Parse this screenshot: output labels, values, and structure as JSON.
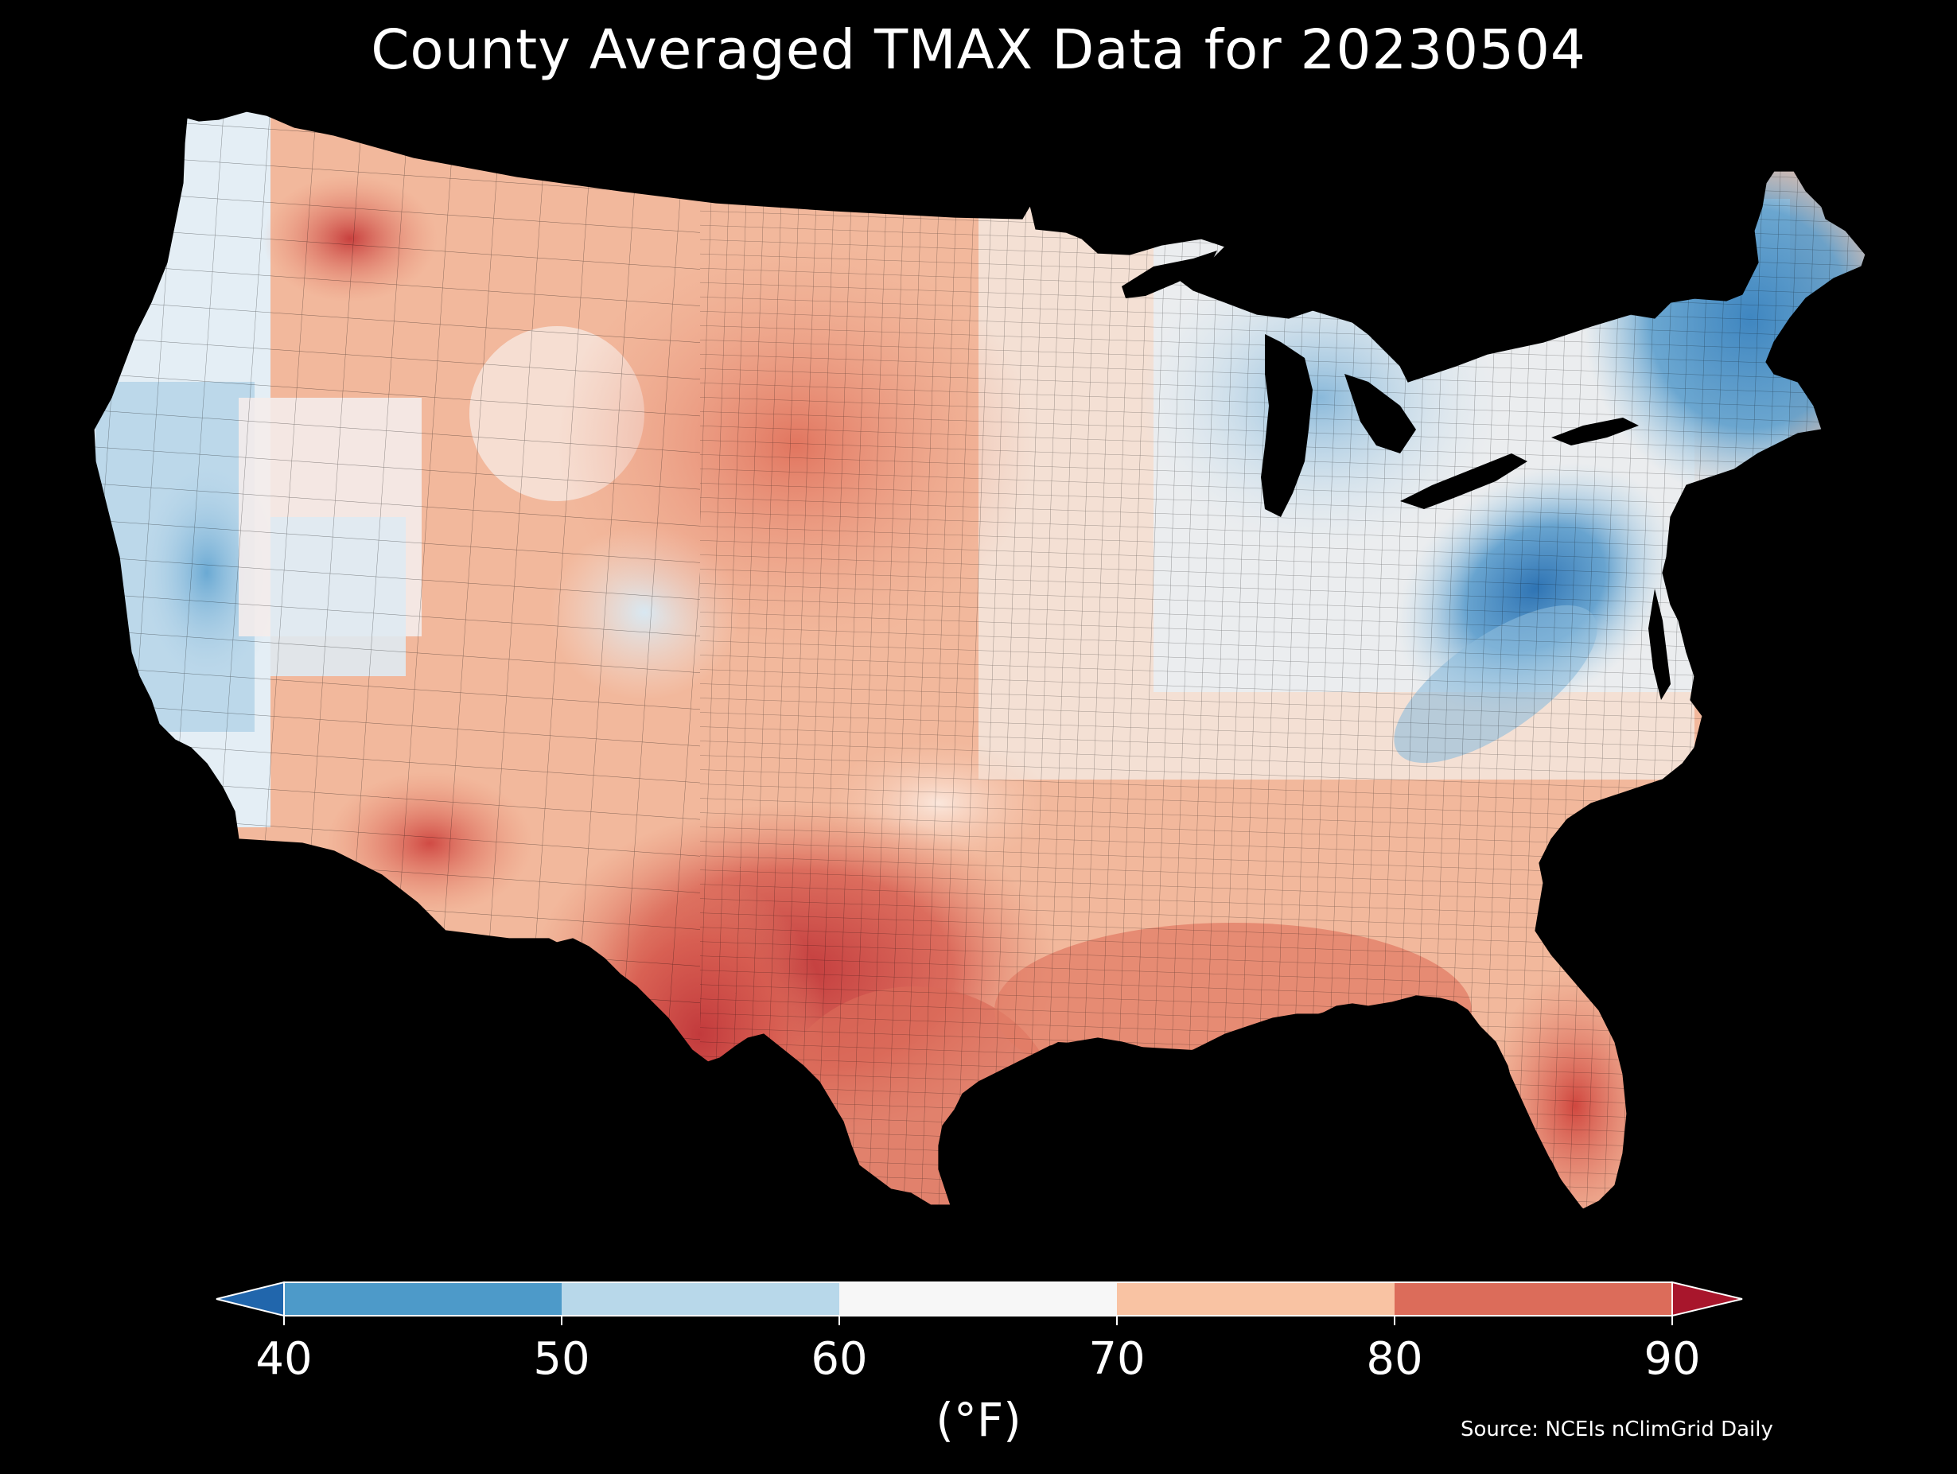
{
  "title": "County Averaged TMAX Data for 20230504",
  "colorbar": {
    "ticks": [
      "40",
      "50",
      "60",
      "70",
      "80",
      "90"
    ],
    "unit": "(°F)",
    "bins": [
      {
        "range": "<40",
        "color": "#2166ac"
      },
      {
        "range": "40-50",
        "color": "#4d9ac9"
      },
      {
        "range": "50-60",
        "color": "#b8d8ea"
      },
      {
        "range": "60-70",
        "color": "#f7f7f7"
      },
      {
        "range": "70-80",
        "color": "#f9c3a3"
      },
      {
        "range": "80-90",
        "color": "#dc6c5a"
      },
      {
        "range": ">90",
        "color": "#a8162c"
      }
    ]
  },
  "source": "Source: NCEIs nClimGrid Daily",
  "colors": {
    "background": "#000000",
    "text": "#ffffff",
    "water": "#000000"
  }
}
